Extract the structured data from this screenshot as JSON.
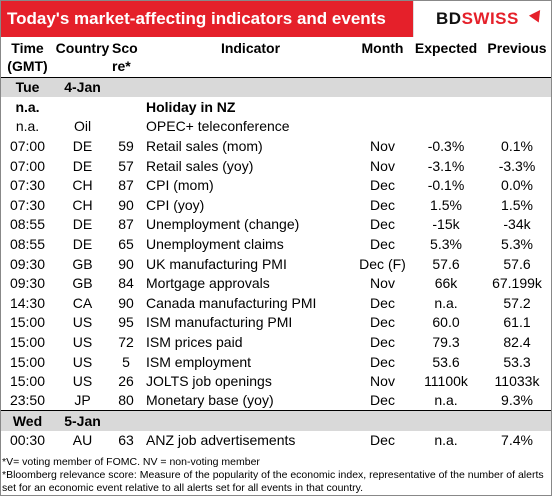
{
  "header": {
    "title": "Today's market-affecting indicators and events",
    "logo_bd": "BD",
    "logo_swiss": "SWISS"
  },
  "columns": {
    "time": "Time\n(GMT)",
    "time_l1": "Time",
    "time_l2": "(GMT)",
    "country": "Country",
    "score_l1": "Sco",
    "score_l2": "re*",
    "indicator": "Indicator",
    "month": "Month",
    "expected": "Expected",
    "previous": "Previous"
  },
  "days": [
    {
      "weekday": "Tue",
      "date": "4-Jan",
      "rows": [
        {
          "time": "n.a.",
          "country": "",
          "score": "",
          "indicator": "Holiday in NZ",
          "month": "",
          "expected": "",
          "previous": "",
          "bold": true
        },
        {
          "time": "n.a.",
          "country": "Oil",
          "score": "",
          "indicator": "OPEC+ teleconference",
          "month": "",
          "expected": "",
          "previous": ""
        },
        {
          "time": "07:00",
          "country": "DE",
          "score": "59",
          "indicator": "Retail sales (mom)",
          "month": "Nov",
          "expected": "-0.3%",
          "previous": "0.1%"
        },
        {
          "time": "07:00",
          "country": "DE",
          "score": "57",
          "indicator": "Retail sales (yoy)",
          "month": "Nov",
          "expected": "-3.1%",
          "previous": "-3.3%"
        },
        {
          "time": "07:30",
          "country": "CH",
          "score": "87",
          "indicator": "CPI (mom)",
          "month": "Dec",
          "expected": "-0.1%",
          "previous": "0.0%"
        },
        {
          "time": "07:30",
          "country": "CH",
          "score": "90",
          "indicator": "CPI (yoy)",
          "month": "Dec",
          "expected": "1.5%",
          "previous": "1.5%"
        },
        {
          "time": "08:55",
          "country": "DE",
          "score": "87",
          "indicator": "Unemployment (change)",
          "month": "Dec",
          "expected": "-15k",
          "previous": "-34k"
        },
        {
          "time": "08:55",
          "country": "DE",
          "score": "65",
          "indicator": "Unemployment claims",
          "month": "Dec",
          "expected": "5.3%",
          "previous": "5.3%"
        },
        {
          "time": "09:30",
          "country": "GB",
          "score": "90",
          "indicator": "UK manufacturing PMI",
          "month": "Dec (F)",
          "expected": "57.6",
          "previous": "57.6"
        },
        {
          "time": "09:30",
          "country": "GB",
          "score": "84",
          "indicator": "Mortgage approvals",
          "month": "Nov",
          "expected": "66k",
          "previous": "67.199k"
        },
        {
          "time": "14:30",
          "country": "CA",
          "score": "90",
          "indicator": "Canada manufacturing PMI",
          "month": "Dec",
          "expected": "n.a.",
          "previous": "57.2"
        },
        {
          "time": "15:00",
          "country": "US",
          "score": "95",
          "indicator": "ISM manufacturing PMI",
          "month": "Dec",
          "expected": "60.0",
          "previous": "61.1"
        },
        {
          "time": "15:00",
          "country": "US",
          "score": "72",
          "indicator": "ISM prices paid",
          "month": "Dec",
          "expected": "79.3",
          "previous": "82.4"
        },
        {
          "time": "15:00",
          "country": "US",
          "score": "5",
          "indicator": "ISM employment",
          "month": "Dec",
          "expected": "53.6",
          "previous": "53.3"
        },
        {
          "time": "15:00",
          "country": "US",
          "score": "26",
          "indicator": "JOLTS job openings",
          "month": "Nov",
          "expected": "11100k",
          "previous": "11033k"
        },
        {
          "time": "23:50",
          "country": "JP",
          "score": "80",
          "indicator": "Monetary base (yoy)",
          "month": "Dec",
          "expected": "n.a.",
          "previous": "9.3%"
        }
      ]
    },
    {
      "weekday": "Wed",
      "date": "5-Jan",
      "rows": [
        {
          "time": "00:30",
          "country": "AU",
          "score": "63",
          "indicator": "ANZ job advertisements",
          "month": "Dec",
          "expected": "n.a.",
          "previous": "7.4%"
        }
      ]
    }
  ],
  "footnotes": {
    "line1": "*V= voting member of FOMC. NV = non-voting member",
    "line2": "*Bloomberg relevance score:  Measure of the popularity of the economic index, representative of the number of alerts set for an economic event relative to all alerts set for all events in that country."
  }
}
